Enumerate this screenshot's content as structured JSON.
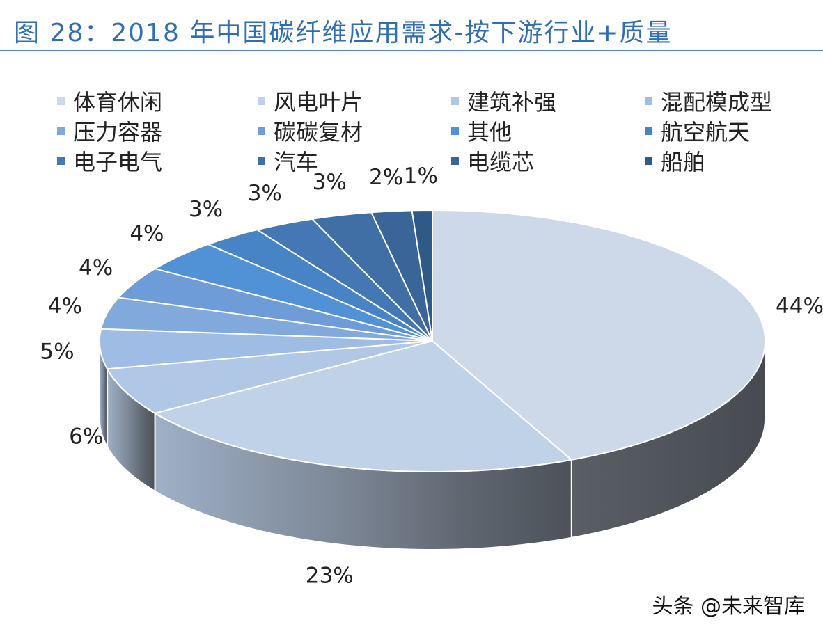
{
  "title": "图 28：2018 年中国碳纤维应用需求-按下游行业+质量",
  "watermark": "头条 @未来智库",
  "chart_data": {
    "type": "pie",
    "style": "3d",
    "legend_position": "top",
    "series": [
      {
        "name": "体育休闲",
        "value": 44,
        "label": "44%",
        "color": "#cdd8e9"
      },
      {
        "name": "风电叶片",
        "value": 23,
        "label": "23%",
        "color": "#c0d2e8"
      },
      {
        "name": "建筑补强",
        "value": 6,
        "label": "6%",
        "color": "#b0c7e6"
      },
      {
        "name": "混配模成型",
        "value": 5,
        "label": "5%",
        "color": "#9fbce4"
      },
      {
        "name": "压力容器",
        "value": 4,
        "label": "4%",
        "color": "#82a9dc"
      },
      {
        "name": "碳碳复材",
        "value": 4,
        "label": "4%",
        "color": "#6e9cd8"
      },
      {
        "name": "其他",
        "value": 4,
        "label": "4%",
        "color": "#5192d6"
      },
      {
        "name": "航空航天",
        "value": 3,
        "label": "3%",
        "color": "#4784c6"
      },
      {
        "name": "电子电气",
        "value": 3,
        "label": "3%",
        "color": "#4478b4"
      },
      {
        "name": "汽车",
        "value": 3,
        "label": "3%",
        "color": "#3f6fa5"
      },
      {
        "name": "电缆芯",
        "value": 2,
        "label": "2%",
        "color": "#3a6598"
      },
      {
        "name": "船舶",
        "value": 1,
        "label": "1%",
        "color": "#2e5a88"
      }
    ]
  }
}
